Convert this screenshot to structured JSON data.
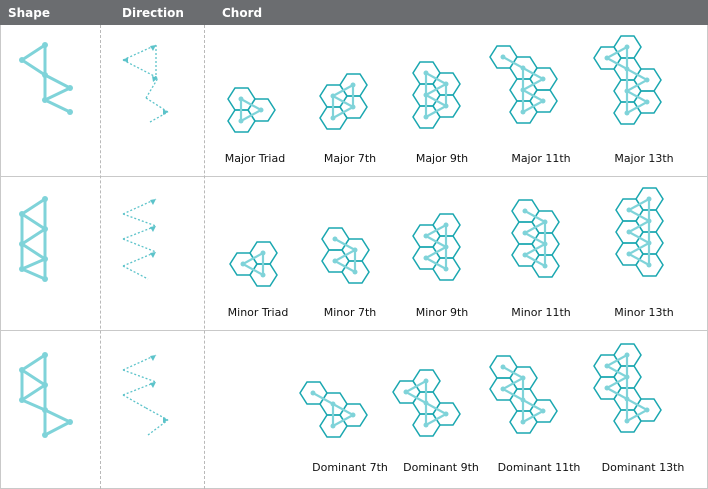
{
  "headers": {
    "shape": "Shape",
    "direction": "Direction",
    "chord": "Chord"
  },
  "colors": {
    "accent": "#1aa7b0",
    "line": "#7fd3d9",
    "header_bg": "#6b6d70"
  },
  "rows": [
    {
      "name": "major",
      "chords": [
        "Major Triad",
        "Major 7th",
        "Major 9th",
        "Major 11th",
        "Major 13th"
      ]
    },
    {
      "name": "minor",
      "chords": [
        "Minor Triad",
        "Minor 7th",
        "Minor 9th",
        "Minor 11th",
        "Minor 13th"
      ]
    },
    {
      "name": "dominant",
      "chords": [
        "Dominant 7th",
        "Dominant 9th",
        "Dominant 11th",
        "Dominant 13th"
      ]
    }
  ]
}
